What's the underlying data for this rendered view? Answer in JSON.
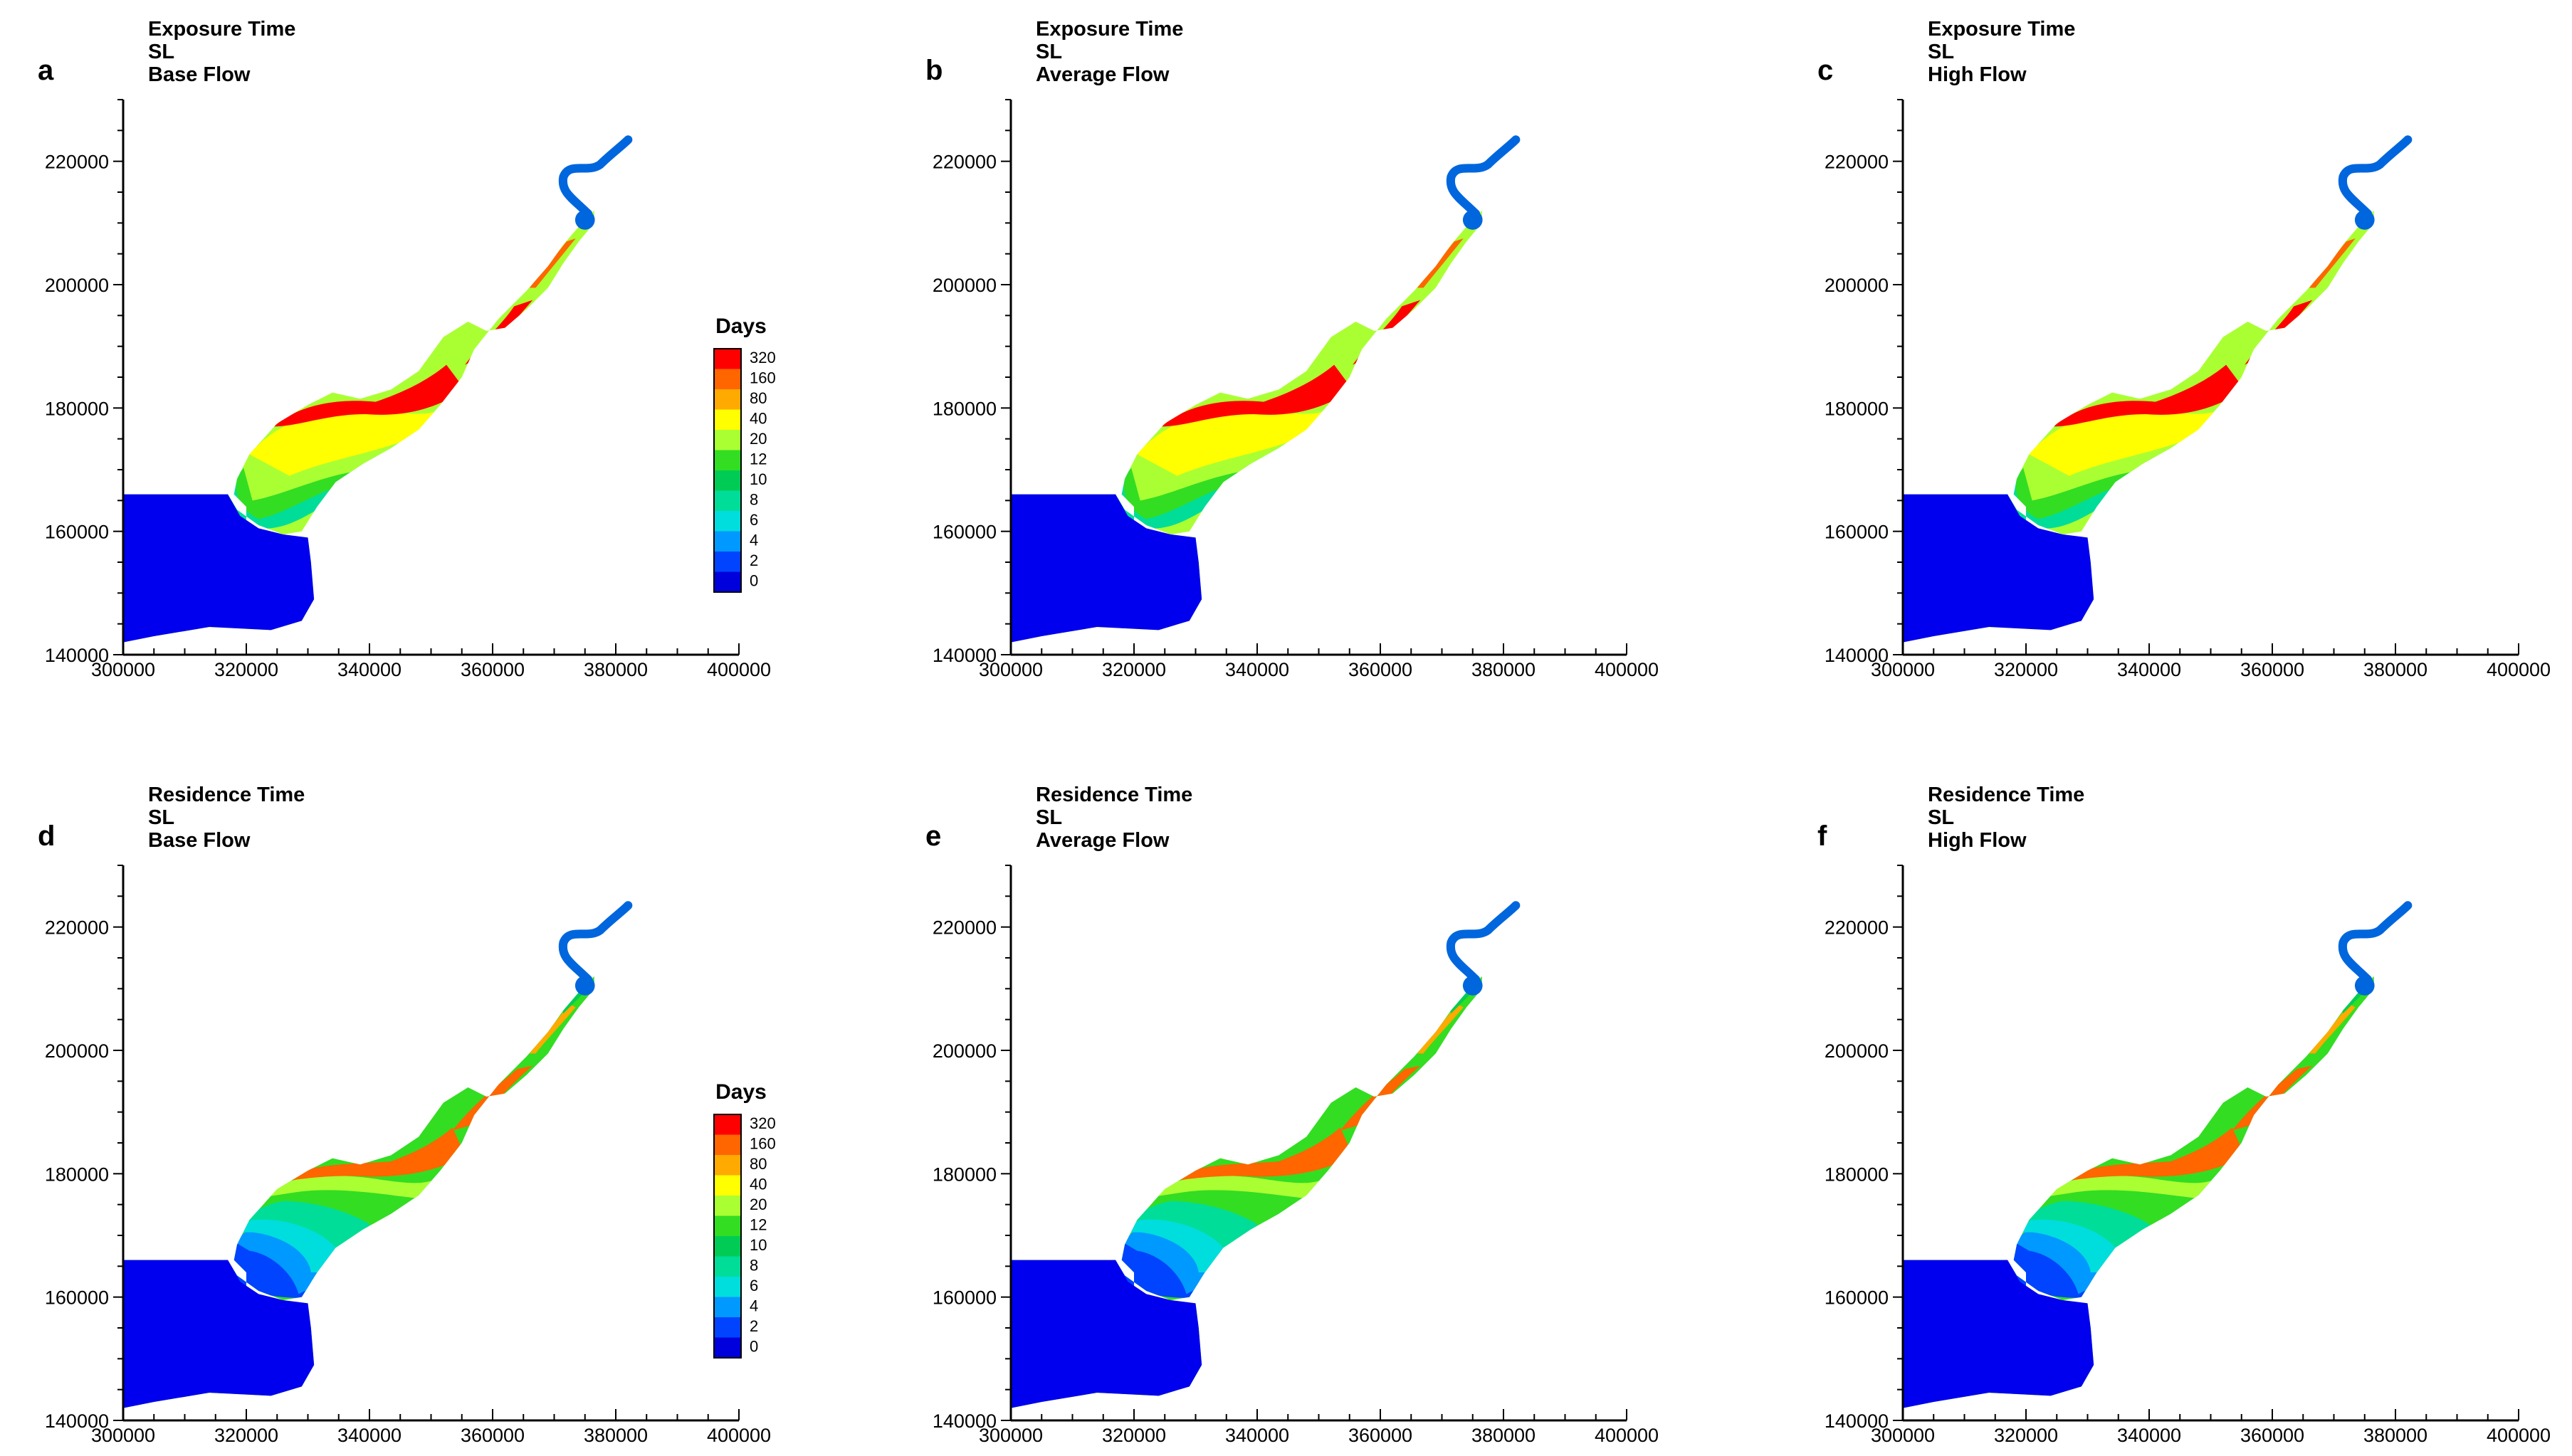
{
  "chart_data": [
    {
      "type": "heatmap",
      "panel_letter": "a",
      "title_lines": [
        "Exposure Time",
        "SL",
        "Base Flow"
      ],
      "x_ticks": [
        300000,
        320000,
        340000,
        360000,
        380000,
        400000
      ],
      "y_ticks": [
        140000,
        160000,
        180000,
        200000,
        220000
      ],
      "xlim": [
        300000,
        400000
      ],
      "ylim": [
        140000,
        230000
      ],
      "has_legend": true
    },
    {
      "type": "heatmap",
      "panel_letter": "b",
      "title_lines": [
        "Exposure Time",
        "SL",
        "Average Flow"
      ],
      "x_ticks": [
        300000,
        320000,
        340000,
        360000,
        380000,
        400000
      ],
      "y_ticks": [
        140000,
        160000,
        180000,
        200000,
        220000
      ],
      "xlim": [
        300000,
        400000
      ],
      "ylim": [
        140000,
        230000
      ],
      "has_legend": false
    },
    {
      "type": "heatmap",
      "panel_letter": "c",
      "title_lines": [
        "Exposure Time",
        "SL",
        "High Flow"
      ],
      "x_ticks": [
        300000,
        320000,
        340000,
        360000,
        380000,
        400000
      ],
      "y_ticks": [
        140000,
        160000,
        180000,
        200000,
        220000
      ],
      "xlim": [
        300000,
        400000
      ],
      "ylim": [
        140000,
        230000
      ],
      "has_legend": false
    },
    {
      "type": "heatmap",
      "panel_letter": "d",
      "title_lines": [
        "Residence Time",
        "SL",
        "Base Flow"
      ],
      "x_ticks": [
        300000,
        320000,
        340000,
        360000,
        380000,
        400000
      ],
      "y_ticks": [
        140000,
        160000,
        180000,
        200000,
        220000
      ],
      "xlim": [
        300000,
        400000
      ],
      "ylim": [
        140000,
        230000
      ],
      "has_legend": true
    },
    {
      "type": "heatmap",
      "panel_letter": "e",
      "title_lines": [
        "Residence Time",
        "SL",
        "Average Flow"
      ],
      "x_ticks": [
        300000,
        320000,
        340000,
        360000,
        380000,
        400000
      ],
      "y_ticks": [
        140000,
        160000,
        180000,
        200000,
        220000
      ],
      "xlim": [
        300000,
        400000
      ],
      "ylim": [
        140000,
        230000
      ],
      "has_legend": false
    },
    {
      "type": "heatmap",
      "panel_letter": "f",
      "title_lines": [
        "Residence Time",
        "SL",
        "High Flow"
      ],
      "x_ticks": [
        300000,
        320000,
        340000,
        360000,
        380000,
        400000
      ],
      "y_ticks": [
        140000,
        160000,
        180000,
        200000,
        220000
      ],
      "xlim": [
        300000,
        400000
      ],
      "ylim": [
        140000,
        230000
      ],
      "has_legend": false
    }
  ],
  "legend": {
    "title": "Days",
    "levels": [
      "320",
      "160",
      "80",
      "40",
      "20",
      "12",
      "10",
      "8",
      "6",
      "4",
      "2",
      "0"
    ],
    "colors": [
      "#ff0000",
      "#ff6600",
      "#ffaa00",
      "#ffff00",
      "#aaff33",
      "#33dd22",
      "#00cc55",
      "#00dd99",
      "#00dddd",
      "#0099ff",
      "#0044ff",
      "#0000dd"
    ]
  },
  "colors": {
    "sea": "#0000ee",
    "river_blue": "#0066dd",
    "axis": "#000000"
  }
}
